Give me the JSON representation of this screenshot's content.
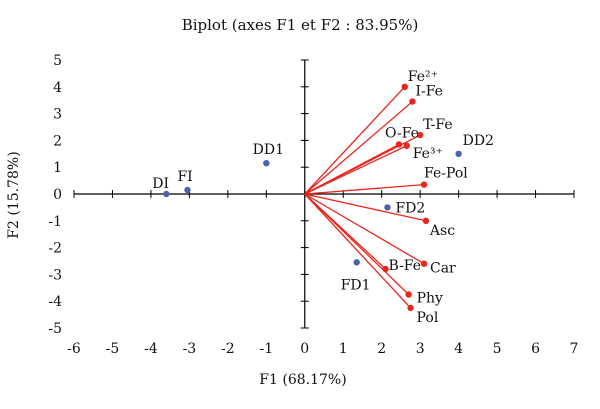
{
  "chart_data": {
    "type": "scatter",
    "title": "Biplot (axes F1 et F2 : 83.95%)",
    "xlabel": "F1 (68.17%)",
    "ylabel": "F2 (15.78%)",
    "xlim": [
      -6,
      7
    ],
    "ylim": [
      -5,
      5
    ],
    "xticks": [
      "-6",
      "-5",
      "-4",
      "-3",
      "-2",
      "-1",
      "0",
      "1",
      "2",
      "3",
      "4",
      "5",
      "6",
      "7"
    ],
    "yticks": [
      "5",
      "4",
      "3",
      "2",
      "1",
      "0",
      "-1",
      "-2",
      "-3",
      "-4",
      "-5"
    ],
    "grid": false,
    "colors": {
      "variables": "#e8261e",
      "observations": "#4a63b0"
    },
    "series": [
      {
        "kind": "variables",
        "points": [
          {
            "label": "Fe²⁺",
            "x": 2.6,
            "y": 4.0
          },
          {
            "label": "I-Fe",
            "x": 2.8,
            "y": 3.45
          },
          {
            "label": "T-Fe",
            "x": 3.0,
            "y": 2.2
          },
          {
            "label": "O-Fe",
            "x": 2.45,
            "y": 1.85
          },
          {
            "label": "Fe³⁺",
            "x": 2.65,
            "y": 1.8
          },
          {
            "label": "Fe-Pol",
            "x": 3.1,
            "y": 0.35
          },
          {
            "label": "Asc",
            "x": 3.15,
            "y": -1.0
          },
          {
            "label": "B-Fe",
            "x": 2.1,
            "y": -2.8
          },
          {
            "label": "Car",
            "x": 3.1,
            "y": -2.6
          },
          {
            "label": "Phy",
            "x": 2.7,
            "y": -3.75
          },
          {
            "label": "Pol",
            "x": 2.75,
            "y": -4.25
          }
        ]
      },
      {
        "kind": "observations",
        "points": [
          {
            "label": "DD1",
            "x": -1.0,
            "y": 1.15
          },
          {
            "label": "FI",
            "x": -3.05,
            "y": 0.15
          },
          {
            "label": "DI",
            "x": -3.6,
            "y": 0.0
          },
          {
            "label": "DD2",
            "x": 4.0,
            "y": 1.5
          },
          {
            "label": "FD2",
            "x": 2.15,
            "y": -0.5
          },
          {
            "label": "FD1",
            "x": 1.35,
            "y": -2.55
          }
        ]
      }
    ]
  }
}
